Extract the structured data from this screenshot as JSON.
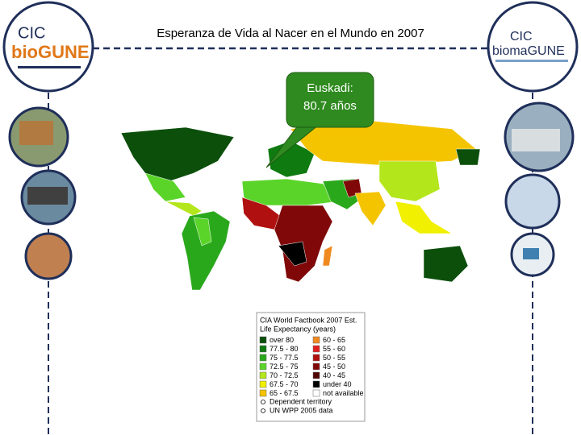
{
  "title": "Esperanza de Vida al Nacer en el Mundo en 2007",
  "callout": {
    "lines": [
      "Euskadi:",
      "80.7 años"
    ]
  },
  "logos": {
    "left": {
      "lines": [
        "CIC",
        "bioGUNE"
      ]
    },
    "right": {
      "lines": [
        "CIC",
        "biomaGUNE"
      ]
    }
  },
  "legend": {
    "title": "CIA World Factbook 2007 Est.",
    "subtitle": "Life Expectancy (years)",
    "entries": [
      {
        "label": "over 80",
        "color": "#0b4f0b"
      },
      {
        "label": "77.5 - 80",
        "color": "#0e7a10"
      },
      {
        "label": "75 - 77.5",
        "color": "#2aa81c"
      },
      {
        "label": "72.5 - 75",
        "color": "#5bd42a"
      },
      {
        "label": "70 - 72.5",
        "color": "#b4e61c"
      },
      {
        "label": "67.5 - 70",
        "color": "#f0f000"
      },
      {
        "label": "65 - 67.5",
        "color": "#f5c400"
      },
      {
        "label": "60 - 65",
        "color": "#f08a20"
      },
      {
        "label": "55 - 60",
        "color": "#e02020"
      },
      {
        "label": "50 - 55",
        "color": "#b01010"
      },
      {
        "label": "45 - 50",
        "color": "#800808"
      },
      {
        "label": "40 - 45",
        "color": "#500404"
      },
      {
        "label": "under 40",
        "color": "#000000"
      },
      {
        "label": "not available",
        "color": "#ffffff"
      }
    ],
    "notes": [
      "Dependent territory",
      "UN WPP 2005 data"
    ]
  }
}
